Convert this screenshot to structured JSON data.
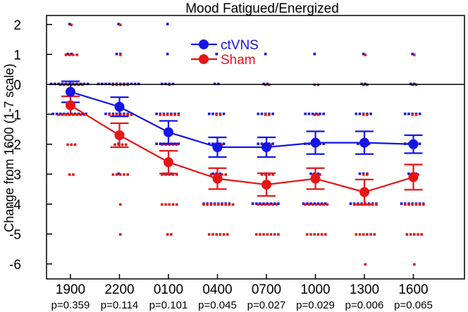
{
  "chart_data": {
    "type": "line",
    "title": "Mood  Fatigued/Energized",
    "xlabel": "",
    "ylabel": "Change from 1600 (1-7 scale)",
    "ylim": [
      -6.5,
      2.3
    ],
    "yticks": [
      2,
      1,
      0,
      -1,
      -2,
      -3,
      -4,
      -5,
      -6
    ],
    "ytick_labels": [
      "2",
      "1",
      "0",
      "-1",
      "-2",
      "-3",
      "-4",
      "-5",
      "-6"
    ],
    "categories": [
      "1900",
      "2200",
      "0100",
      "0400",
      "0700",
      "1000",
      "1300",
      "1600"
    ],
    "p_values": [
      "p=0.359",
      "p=0.114",
      "p=0.101",
      "p=0.045",
      "p=0.027",
      "p=0.029",
      "p=0.006",
      "p=0.065"
    ],
    "legend_position": "top-center",
    "series": [
      {
        "name": "ctVNS",
        "color": "#1515e6",
        "means": [
          -0.25,
          -0.75,
          -1.6,
          -2.1,
          -2.1,
          -1.95,
          -1.95,
          -2.0
        ],
        "sem": [
          0.35,
          0.32,
          0.38,
          0.33,
          0.33,
          0.38,
          0.38,
          0.3
        ],
        "individual": [
          [
            2,
            1,
            1,
            0,
            0,
            0,
            0,
            0,
            0,
            0,
            0,
            0,
            0,
            0,
            -1,
            -1,
            -1,
            -1,
            -1,
            -1,
            -1,
            -1,
            -1,
            -1
          ],
          [
            2,
            1,
            1,
            0,
            0,
            0,
            0,
            0,
            0,
            0,
            0,
            0,
            0,
            0,
            0,
            -1,
            -1,
            -1,
            -1,
            -1,
            -1,
            -1,
            -1,
            -2,
            -3
          ],
          [
            2,
            1,
            0,
            0,
            0,
            0,
            -1,
            -1,
            -1,
            -1,
            -1,
            -1,
            -1,
            -2,
            -2,
            -2,
            -2,
            -2,
            -2,
            -2,
            -3,
            -3,
            -3
          ],
          [
            1,
            0,
            0,
            -1,
            -1,
            -1,
            -1,
            -1,
            -2,
            -2,
            -2,
            -2,
            -2,
            -3,
            -3,
            -3,
            -4,
            -4,
            -4,
            -4,
            -4,
            -4,
            -4,
            -4
          ],
          [
            1,
            0,
            0,
            -1,
            -1,
            -1,
            -1,
            -1,
            -2,
            -2,
            -2,
            -2,
            -2,
            -3,
            -3,
            -3,
            -4,
            -4,
            -4,
            -4,
            -4,
            -4,
            -4,
            -4
          ],
          [
            1,
            -1,
            -1,
            -1,
            -1,
            -1,
            -1,
            -2,
            -2,
            -2,
            -2,
            -2,
            -2,
            -3,
            -3,
            -3,
            -4,
            -4,
            -4,
            -4,
            -4,
            -4,
            -4
          ],
          [
            1,
            0,
            0,
            -1,
            -1,
            -1,
            -1,
            -1,
            -2,
            -2,
            -2,
            -2,
            -3,
            -3,
            -3,
            -4,
            -4,
            -4,
            -4,
            -4,
            -4,
            -4,
            -4
          ],
          [
            1,
            0,
            0,
            -1,
            -1,
            -1,
            -1,
            -1,
            -2,
            -2,
            -2,
            -2,
            -2,
            -3,
            -3,
            -3,
            -4,
            -4,
            -4,
            -4,
            -4,
            -4,
            -4
          ]
        ]
      },
      {
        "name": "Sham",
        "color": "#e61515",
        "means": [
          -0.7,
          -1.7,
          -2.6,
          -3.15,
          -3.35,
          -3.15,
          -3.6,
          -3.1
        ],
        "sem": [
          0.3,
          0.4,
          0.38,
          0.35,
          0.38,
          0.35,
          0.42,
          0.42
        ],
        "individual": [
          [
            2,
            1,
            1,
            1,
            1,
            0,
            0,
            0,
            0,
            0,
            0,
            0,
            -1,
            -1,
            -1,
            -1,
            -1,
            -1,
            -1,
            -1,
            -2,
            -2,
            -2,
            -3,
            -3
          ],
          [
            2,
            1,
            0,
            0,
            0,
            0,
            0,
            -1,
            -1,
            -1,
            -1,
            -1,
            -1,
            -1,
            -2,
            -2,
            -2,
            -2,
            -3,
            -3,
            -3,
            -3,
            -3,
            -4,
            -5
          ],
          [
            0,
            -1,
            -1,
            -1,
            -1,
            -1,
            -1,
            -2,
            -2,
            -2,
            -2,
            -2,
            -3,
            -3,
            -3,
            -3,
            -3,
            -4,
            -4,
            -4,
            -4,
            -4,
            -5,
            -5
          ],
          [
            -1,
            -1,
            -2,
            -2,
            -2,
            -3,
            -3,
            -3,
            -3,
            -3,
            -4,
            -4,
            -4,
            -4,
            -4,
            -4,
            -4,
            -4,
            -4,
            -5,
            -5,
            -5,
            -5,
            -5,
            -5
          ],
          [
            0,
            0,
            -1,
            -1,
            -2,
            -2,
            -2,
            -3,
            -3,
            -3,
            -3,
            -4,
            -4,
            -4,
            -4,
            -4,
            -4,
            -5,
            -5,
            -5,
            -5,
            -5,
            -5,
            -5
          ],
          [
            0,
            0,
            -1,
            -1,
            -2,
            -2,
            -3,
            -3,
            -3,
            -4,
            -4,
            -4,
            -4,
            -4,
            -4,
            -4,
            -5,
            -5,
            -5,
            -5,
            -5,
            -5
          ],
          [
            1,
            0,
            0,
            -1,
            -1,
            -2,
            -2,
            -3,
            -3,
            -4,
            -4,
            -4,
            -4,
            -4,
            -4,
            -4,
            -5,
            -5,
            -5,
            -5,
            -5,
            -5,
            -6
          ],
          [
            1,
            0,
            0,
            -1,
            -1,
            -2,
            -2,
            -3,
            -3,
            -3,
            -4,
            -4,
            -4,
            -4,
            -4,
            -4,
            -5,
            -5,
            -5,
            -5,
            -5,
            -6
          ]
        ]
      }
    ]
  }
}
